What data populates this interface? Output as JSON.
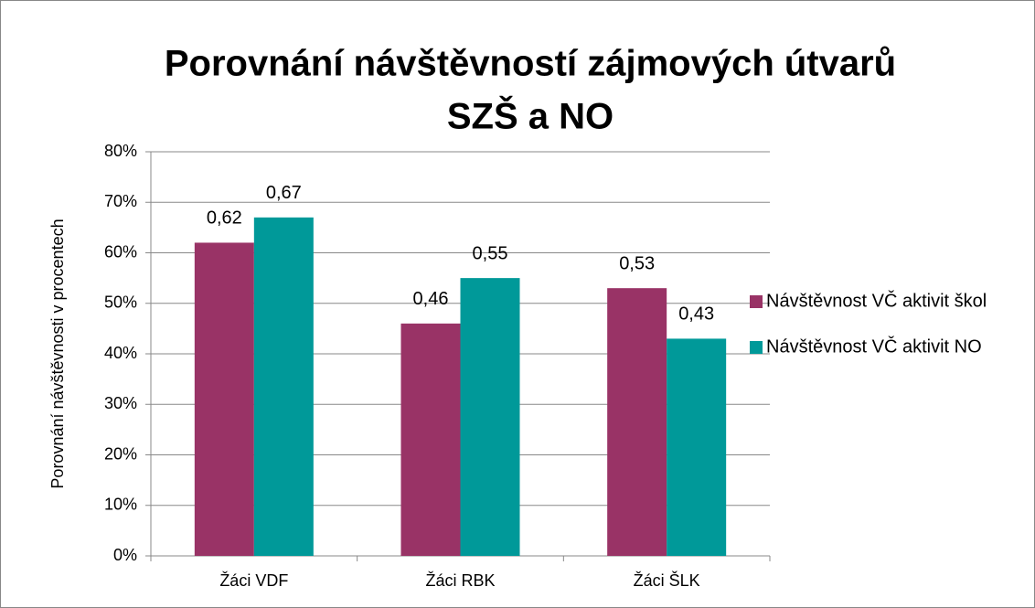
{
  "chart_data": {
    "type": "bar",
    "title": [
      "Porovnání návštěvností zájmových útvarů",
      "SZŠ a NO"
    ],
    "y_label": "Porovnání návštěvnosti v procentech",
    "categories": [
      "Žáci VDF",
      "Žáci RBK",
      "Žáci ŠLK"
    ],
    "series": [
      {
        "name": "Návštěvnost VČ aktivit škol",
        "color": "#993366",
        "values": [
          62,
          46,
          53
        ],
        "value_labels": [
          "0,62",
          "0,46",
          "0,53"
        ]
      },
      {
        "name": "Návštěvnost VČ aktivit NO",
        "color": "#009999",
        "values": [
          67,
          55,
          43
        ],
        "value_labels": [
          "0,67",
          "0,55",
          "0,43"
        ]
      }
    ],
    "ylim": [
      0,
      80
    ],
    "yticks": [
      {
        "value": 0,
        "label": "0%"
      },
      {
        "value": 10,
        "label": "10%"
      },
      {
        "value": 20,
        "label": "20%"
      },
      {
        "value": 30,
        "label": "30%"
      },
      {
        "value": 40,
        "label": "40%"
      },
      {
        "value": 50,
        "label": "50%"
      },
      {
        "value": 60,
        "label": "60%"
      },
      {
        "value": 70,
        "label": "70%"
      },
      {
        "value": 80,
        "label": "80%"
      }
    ],
    "grid": true,
    "legend": "right"
  }
}
